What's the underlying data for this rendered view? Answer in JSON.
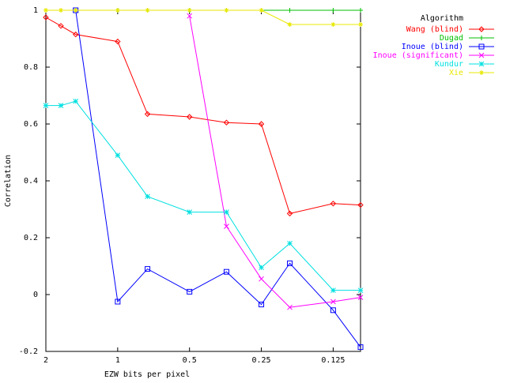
{
  "chart_data": {
    "type": "line",
    "xlabel": "EZW bits per pixel",
    "ylabel": "Correlation",
    "x_scale": "log2",
    "x_direction": "descending",
    "xlim": [
      2,
      0.096
    ],
    "ylim": [
      -0.2,
      1
    ],
    "grid": false,
    "legend_position": "top-right",
    "legend_title": "Algorithm",
    "x_ticks": [
      {
        "value": 2,
        "label": "2"
      },
      {
        "value": 1,
        "label": "1"
      },
      {
        "value": 0.5,
        "label": "0.5"
      },
      {
        "value": 0.25,
        "label": "0.25"
      },
      {
        "value": 0.125,
        "label": "0.125"
      }
    ],
    "y_ticks": [
      {
        "value": 1,
        "label": "1"
      },
      {
        "value": 0.8,
        "label": "0.8"
      },
      {
        "value": 0.6,
        "label": "0.6"
      },
      {
        "value": 0.4,
        "label": "0.4"
      },
      {
        "value": 0.2,
        "label": "0.2"
      },
      {
        "value": 0,
        "label": "0"
      },
      {
        "value": -0.2,
        "label": "-0.2"
      }
    ],
    "x": [
      2,
      1.73,
      1.5,
      1,
      0.75,
      0.5,
      0.35,
      0.25,
      0.19,
      0.125,
      0.096
    ],
    "series": [
      {
        "name": "Wang (blind)",
        "color": "#ff0000",
        "marker": "diamond",
        "points": [
          [
            2,
            0.975
          ],
          [
            1.73,
            0.945
          ],
          [
            1.5,
            0.915
          ],
          [
            1,
            0.89
          ],
          [
            0.75,
            0.635
          ],
          [
            0.5,
            0.625
          ],
          [
            0.35,
            0.605
          ],
          [
            0.25,
            0.6
          ],
          [
            0.19,
            0.285
          ],
          [
            0.125,
            0.32
          ],
          [
            0.096,
            0.315
          ]
        ]
      },
      {
        "name": "Dugad",
        "color": "#00c000",
        "marker": "plus",
        "points": [
          [
            2,
            1
          ],
          [
            1.73,
            1
          ],
          [
            1.5,
            1
          ],
          [
            1,
            1
          ],
          [
            0.75,
            1
          ],
          [
            0.5,
            1
          ],
          [
            0.35,
            1
          ],
          [
            0.25,
            1
          ],
          [
            0.19,
            1
          ],
          [
            0.125,
            1
          ],
          [
            0.096,
            1
          ]
        ]
      },
      {
        "name": "Inoue (blind)",
        "color": "#0000ff",
        "marker": "square",
        "points": [
          [
            1.5,
            1
          ],
          [
            1,
            -0.025
          ],
          [
            0.75,
            0.09
          ],
          [
            0.5,
            0.01
          ],
          [
            0.35,
            0.08
          ],
          [
            0.25,
            -0.035
          ],
          [
            0.19,
            0.11
          ],
          [
            0.125,
            -0.055
          ],
          [
            0.096,
            -0.185
          ]
        ]
      },
      {
        "name": "Inoue (significant)",
        "color": "#ff00ff",
        "marker": "cross",
        "points": [
          [
            0.5,
            0.98
          ],
          [
            0.35,
            0.24
          ],
          [
            0.25,
            0.055
          ],
          [
            0.19,
            -0.045
          ],
          [
            0.125,
            -0.025
          ],
          [
            0.096,
            -0.01
          ]
        ]
      },
      {
        "name": "Kundur",
        "color": "#00e0e0",
        "marker": "star",
        "points": [
          [
            2,
            0.665
          ],
          [
            1.73,
            0.665
          ],
          [
            1.5,
            0.68
          ],
          [
            1,
            0.49
          ],
          [
            0.75,
            0.345
          ],
          [
            0.5,
            0.29
          ],
          [
            0.35,
            0.29
          ],
          [
            0.25,
            0.095
          ],
          [
            0.19,
            0.18
          ],
          [
            0.125,
            0.015
          ],
          [
            0.096,
            0.015
          ]
        ]
      },
      {
        "name": "Xie",
        "color": "#e8e800",
        "marker": "asterisk",
        "points": [
          [
            2,
            1
          ],
          [
            1.73,
            1
          ],
          [
            1.5,
            1
          ],
          [
            1,
            1
          ],
          [
            0.75,
            1
          ],
          [
            0.5,
            1
          ],
          [
            0.35,
            1
          ],
          [
            0.25,
            1
          ],
          [
            0.19,
            0.95
          ],
          [
            0.125,
            0.95
          ],
          [
            0.096,
            0.95
          ]
        ]
      }
    ]
  }
}
